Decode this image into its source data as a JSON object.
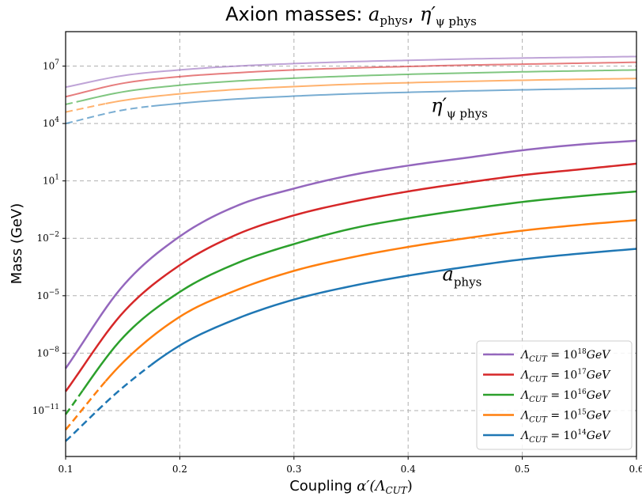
{
  "chart_data": {
    "type": "line",
    "title": "Axion masses: a_phys, η'_ψ phys",
    "title_parts": {
      "prefix": "Axion masses: ",
      "math1_base": "a",
      "math1_sub": "phys",
      "sep": ", ",
      "math2_base": "η′",
      "math2_sub": "ψ phys"
    },
    "xlabel": "Coupling α′(Λ_CUT)",
    "xlabel_parts": {
      "prefix": "Coupling ",
      "math": "α′(Λ",
      "math_sub": "CUT",
      "math_end": ")"
    },
    "ylabel": "Mass (GeV)",
    "yscale": "log",
    "xlim": [
      0.1,
      0.6
    ],
    "ylim_log10": [
      -13.4,
      8.8
    ],
    "grid": true,
    "legend_position": "lower right",
    "x_ticks": [
      "0.1",
      "0.2",
      "0.3",
      "0.4",
      "0.5",
      "0.6"
    ],
    "x_tick_values": [
      0.1,
      0.2,
      0.3,
      0.4,
      0.5,
      0.6
    ],
    "y_ticks": [
      {
        "base": "10",
        "exp": "7",
        "log10": 7
      },
      {
        "base": "10",
        "exp": "4",
        "log10": 4
      },
      {
        "base": "10",
        "exp": "1",
        "log10": 1
      },
      {
        "base": "10",
        "exp": "−2",
        "log10": -2
      },
      {
        "base": "10",
        "exp": "−5",
        "log10": -5
      },
      {
        "base": "10",
        "exp": "−8",
        "log10": -8
      },
      {
        "base": "10",
        "exp": "−11",
        "log10": -11
      }
    ],
    "annotations": [
      {
        "base": "η′",
        "sub": "ψ phys",
        "x": 0.42,
        "log10": 4.6
      },
      {
        "base": "a",
        "sub": "phys",
        "x": 0.43,
        "log10": -4.2
      }
    ],
    "x_samples": [
      0.1,
      0.15,
      0.2,
      0.25,
      0.3,
      0.35,
      0.4,
      0.45,
      0.5,
      0.55,
      0.6
    ],
    "series": [
      {
        "name": "Λ_CUT = 10^18 GeV",
        "legend_base": "Λ",
        "legend_sub": "CUT",
        "legend_mid": " = 10",
        "legend_exp": "18",
        "legend_unit": "GeV",
        "color": "#9467bd",
        "dashed_until": 0.1,
        "a_phys_log10": [
          -8.8,
          -4.5,
          -1.9,
          -0.3,
          0.6,
          1.3,
          1.8,
          2.2,
          2.6,
          2.9,
          3.1
        ],
        "eta_log10": [
          5.9,
          6.5,
          6.8,
          7.0,
          7.13,
          7.23,
          7.3,
          7.37,
          7.42,
          7.46,
          7.5
        ]
      },
      {
        "name": "Λ_CUT = 10^17 GeV",
        "legend_base": "Λ",
        "legend_sub": "CUT",
        "legend_mid": " = 10",
        "legend_exp": "17",
        "legend_unit": "GeV",
        "color": "#d62728",
        "dashed_until": 0.1,
        "a_phys_log10": [
          -10.0,
          -5.9,
          -3.4,
          -1.8,
          -0.8,
          -0.1,
          0.45,
          0.9,
          1.3,
          1.6,
          1.9
        ],
        "eta_log10": [
          5.4,
          6.1,
          6.45,
          6.65,
          6.8,
          6.9,
          6.98,
          7.05,
          7.1,
          7.15,
          7.2
        ]
      },
      {
        "name": "Λ_CUT = 10^16 GeV",
        "legend_base": "Λ",
        "legend_sub": "CUT",
        "legend_mid": " = 10",
        "legend_exp": "16",
        "legend_unit": "GeV",
        "color": "#2ca02c",
        "dashed_until": 0.115,
        "a_phys_log10": [
          -11.2,
          -7.2,
          -4.8,
          -3.3,
          -2.3,
          -1.5,
          -0.95,
          -0.5,
          -0.1,
          0.2,
          0.45
        ],
        "eta_log10": [
          5.0,
          5.65,
          6.0,
          6.22,
          6.37,
          6.48,
          6.57,
          6.64,
          6.7,
          6.75,
          6.8
        ]
      },
      {
        "name": "Λ_CUT = 10^15 GeV",
        "legend_base": "Λ",
        "legend_sub": "CUT",
        "legend_mid": " = 10",
        "legend_exp": "15",
        "legend_unit": "GeV",
        "color": "#ff7f0e",
        "dashed_until": 0.135,
        "a_phys_log10": [
          -12.0,
          -8.5,
          -6.1,
          -4.7,
          -3.7,
          -3.0,
          -2.45,
          -2.0,
          -1.6,
          -1.3,
          -1.05
        ],
        "eta_log10": [
          4.6,
          5.2,
          5.55,
          5.78,
          5.93,
          6.05,
          6.13,
          6.2,
          6.26,
          6.31,
          6.35
        ]
      },
      {
        "name": "Λ_CUT = 10^14 GeV",
        "legend_base": "Λ",
        "legend_sub": "CUT",
        "legend_mid": " = 10",
        "legend_exp": "14",
        "legend_unit": "GeV",
        "color": "#1f77b4",
        "dashed_until": 0.175,
        "a_phys_log10": [
          -12.6,
          -9.8,
          -7.6,
          -6.2,
          -5.2,
          -4.5,
          -3.95,
          -3.5,
          -3.1,
          -2.8,
          -2.55
        ],
        "eta_log10": [
          4.0,
          4.7,
          5.05,
          5.28,
          5.43,
          5.55,
          5.63,
          5.7,
          5.76,
          5.81,
          5.85
        ]
      }
    ]
  }
}
